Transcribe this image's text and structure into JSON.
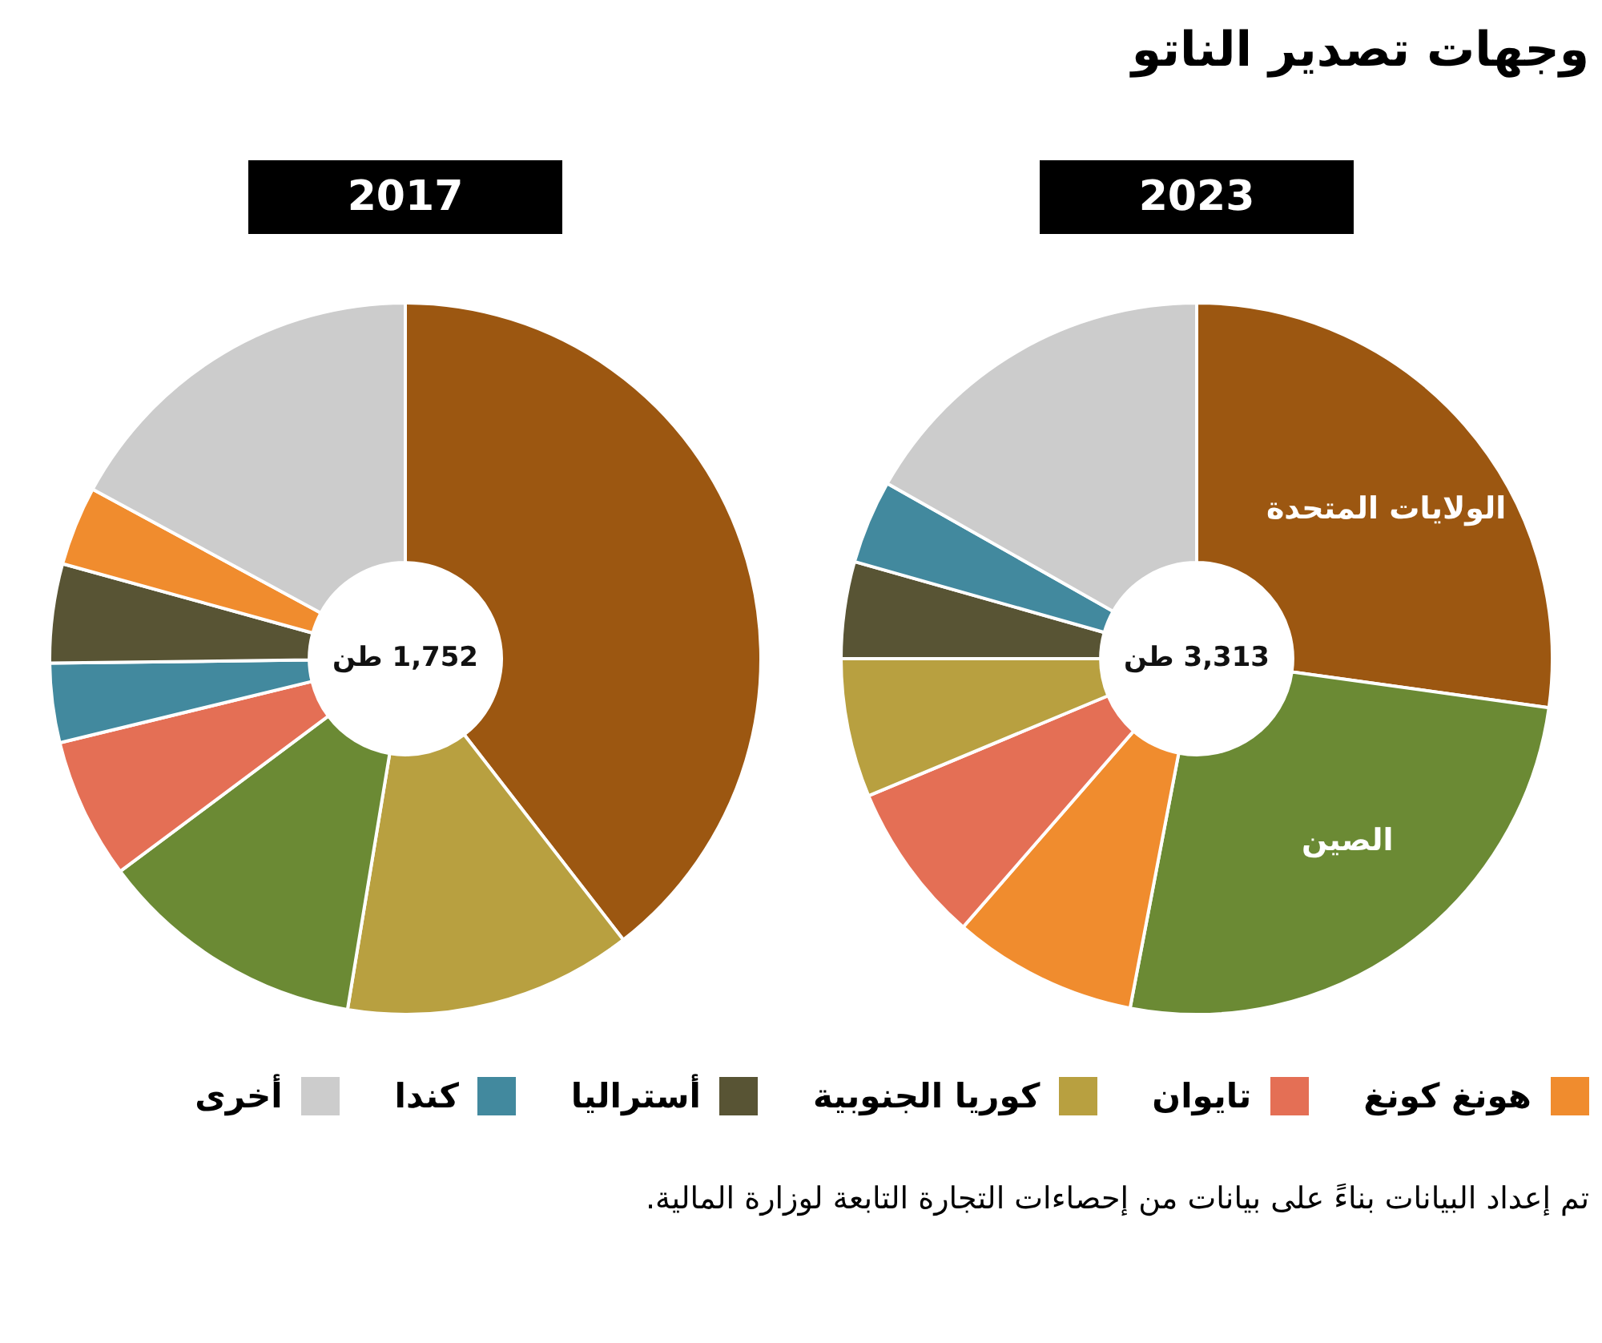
{
  "chart_data": [
    {
      "type": "donut",
      "title": "وجهات تصدير الناتو",
      "subtitle": "2023",
      "categories": [
        "الولايات المتحدة",
        "الصين",
        "هونغ كونغ",
        "تايوان",
        "كوريا الجنوبية",
        "أستراليا",
        "كندا",
        "أخرى"
      ],
      "values": [
        27.2,
        25.8,
        8.4,
        7.3,
        6.3,
        4.4,
        3.8,
        16.8
      ],
      "colors": [
        "#9c5711",
        "#6b8a34",
        "#f08c2e",
        "#e46f55",
        "#b8a040",
        "#585434",
        "#42899e",
        "#cccccc"
      ],
      "legend": "bottom",
      "annotations": [
        "3,313 طن",
        "تم إعداد البيانات بناءً على بيانات من إحصاءات التجارة التابعة لوزارة المالية."
      ]
    },
    {
      "type": "donut",
      "subtitle": "2017",
      "categories": [
        null,
        null,
        null,
        null,
        null,
        null,
        null,
        null
      ],
      "values": [
        39.5,
        13.1,
        12.2,
        6.4,
        3.6,
        4.5,
        3.6,
        17.1
      ],
      "colors": [
        "#9c5711",
        "#b8a040",
        "#6b8a34",
        "#e46f55",
        "#42899e",
        "#585434",
        "#f08c2e",
        "#cccccc"
      ],
      "annotations": [
        "1,752 طن"
      ]
    }
  ]
}
